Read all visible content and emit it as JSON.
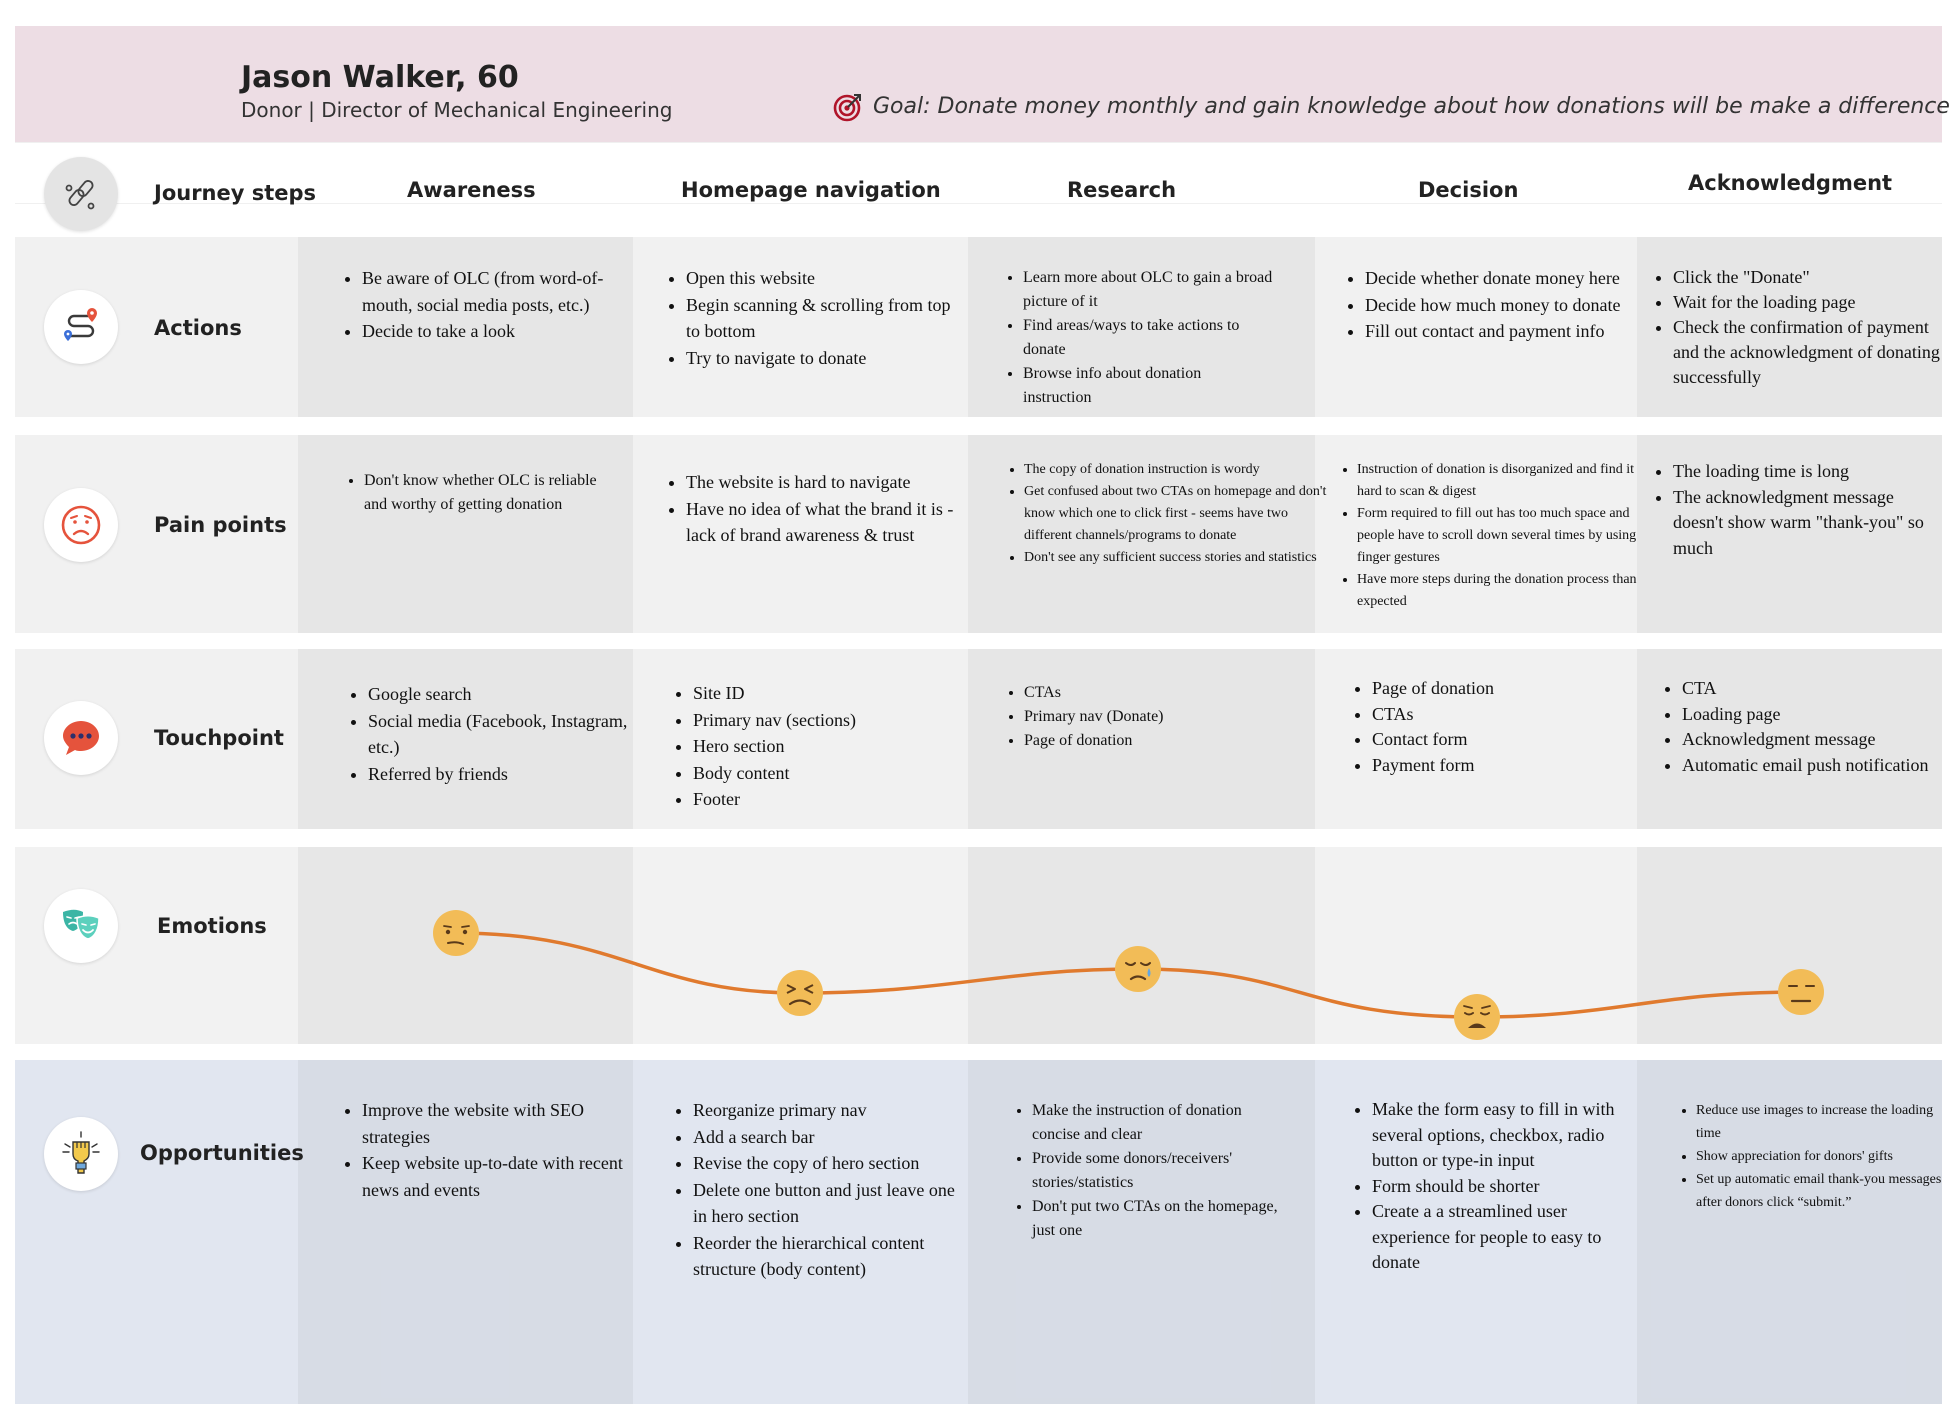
{
  "persona": {
    "name": "Jason Walker, 60",
    "role": "Donor | Director of Mechanical Engineering",
    "goal": "Goal: Donate money monthly and gain knowledge about how donations will be make a difference"
  },
  "steps_label": "Journey steps",
  "steps": [
    "Awareness",
    "Homepage navigation",
    "Research",
    "Decision",
    "Acknowledgment"
  ],
  "rows": {
    "actions": {
      "label": "Actions",
      "cells": [
        [
          "Be aware of OLC (from word-of-mouth, social media posts, etc.)",
          "Decide to take a look"
        ],
        [
          "Open this website",
          "Begin scanning & scrolling from top to bottom",
          "Try to navigate to donate"
        ],
        [
          "Learn more about OLC to gain a broad picture of it",
          "Find areas/ways to take actions to donate",
          "Browse info about donation instruction"
        ],
        [
          "Decide whether donate money here",
          "Decide how much money to donate",
          "Fill out contact and payment info"
        ],
        [
          "Click the \"Donate\"",
          "Wait for the loading page",
          "Check the confirmation of payment and the acknowledgment of donating successfully"
        ]
      ]
    },
    "pain_points": {
      "label": "Pain points",
      "cells": [
        [
          "Don't know whether OLC is reliable and worthy of getting donation"
        ],
        [
          "The website is hard to navigate",
          "Have no idea of what the brand it is - lack of brand awareness & trust"
        ],
        [
          "The copy of donation instruction is wordy",
          "Get confused about two CTAs on homepage and don't know which one to click first - seems have two different channels/programs to donate",
          "Don't see any sufficient success stories and statistics"
        ],
        [
          "Instruction of donation is disorganized and find it hard to scan & digest",
          "Form required to fill out has too much space and people have to scroll down several times by using finger gestures",
          "Have more steps during the donation process than expected"
        ],
        [
          "The loading time is long",
          "The acknowledgment message doesn't show warm \"thank-you\" so much"
        ]
      ]
    },
    "touchpoint": {
      "label": "Touchpoint",
      "cells": [
        [
          "Google search",
          "Social media (Facebook, Instagram, etc.)",
          "Referred by friends"
        ],
        [
          "Site ID",
          "Primary nav (sections)",
          "Hero section",
          "Body content",
          "Footer"
        ],
        [
          "CTAs",
          "Primary nav (Donate)",
          "Page of donation"
        ],
        [
          "Page of donation",
          "CTAs",
          "Contact form",
          "Payment form"
        ],
        [
          "CTA",
          "Loading page",
          "Acknowledgment message",
          "Automatic email push notification"
        ]
      ]
    },
    "emotions": {
      "label": "Emotions",
      "faces": [
        "skeptical",
        "frustrated",
        "crying",
        "weary",
        "neutral"
      ]
    },
    "opportunities": {
      "label": "Opportunities",
      "cells": [
        [
          "Improve the website with SEO strategies",
          "Keep website up-to-date with recent news and events"
        ],
        [
          "Reorganize primary nav",
          "Add a search bar",
          "Revise the copy of hero section",
          "Delete one button and just leave one in hero section",
          "Reorder the hierarchical content structure (body content)"
        ],
        [
          "Make the instruction of donation concise and clear",
          "Provide some donors/receivers' stories/statistics",
          "Don't put two CTAs on the homepage, just one"
        ],
        [
          "Make the form easy to fill in with several options, checkbox, radio button or type-in input",
          "Form should be shorter",
          "Create a a streamlined user experience for people to easy to donate"
        ],
        [
          "Reduce use images to increase the loading time",
          "Show appreciation for donors' gifts",
          "Set up automatic email thank-you messages after donors click “submit.”"
        ]
      ]
    }
  },
  "colors": {
    "header_bg": "#eddde4",
    "row_bg": "#f1f1f1",
    "opportunities_bg": "#e1e6f0",
    "emotion_curve": "#e07a2e",
    "face": "#f2bc57",
    "goal_icon": "#b0142a"
  },
  "icons": [
    "goal-target-icon",
    "footsteps-icon",
    "route-pins-icon",
    "sad-face-icon",
    "chat-bubble-icon",
    "theater-masks-icon",
    "raised-fist-icon"
  ]
}
